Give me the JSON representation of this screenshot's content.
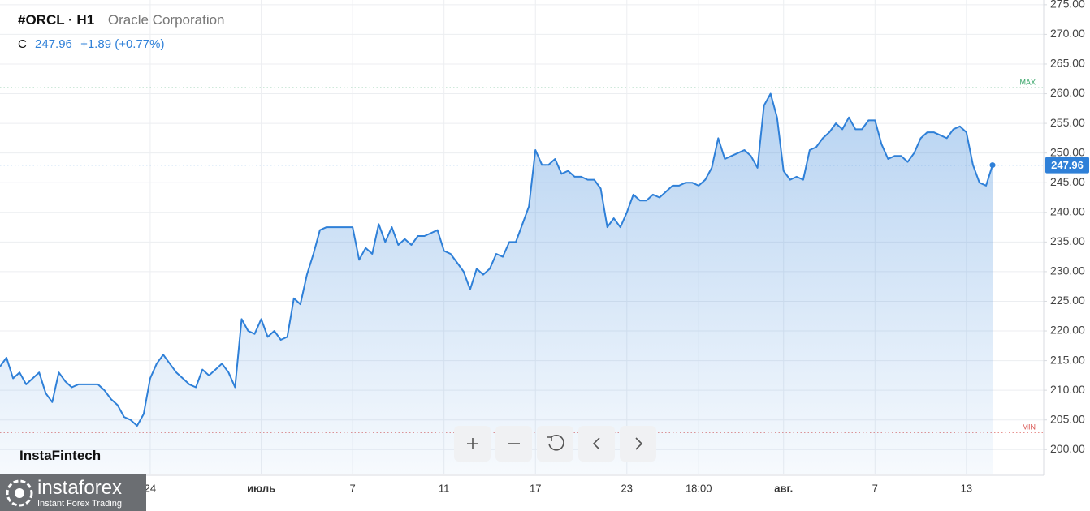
{
  "header": {
    "symbol": "#ORCL · H1",
    "name": "Oracle Corporation",
    "close_label": "C",
    "close": "247.96",
    "change": "+1.89 (+0.77%)"
  },
  "branding": {
    "watermark": "InstaFintech",
    "logo": "instaforex",
    "tagline": "Instant Forex Trading"
  },
  "chart_data": {
    "type": "area",
    "categories": [
      null,
      null,
      null,
      null,
      null,
      null,
      null,
      null,
      null,
      null,
      null,
      null,
      null,
      null,
      null,
      null,
      null,
      null,
      null,
      null,
      null,
      null,
      null,
      "24",
      null,
      null,
      null,
      null,
      null,
      null,
      null,
      null,
      null,
      null,
      null,
      null,
      null,
      null,
      null,
      null,
      "июль",
      null,
      null,
      null,
      null,
      null,
      null,
      null,
      null,
      null,
      null,
      null,
      null,
      null,
      "7",
      null,
      null,
      null,
      null,
      null,
      null,
      null,
      null,
      null,
      null,
      null,
      null,
      null,
      "11",
      null,
      null,
      null,
      null,
      null,
      null,
      null,
      null,
      null,
      null,
      null,
      null,
      null,
      "17",
      null,
      null,
      null,
      null,
      null,
      null,
      null,
      null,
      null,
      null,
      null,
      null,
      null,
      "23",
      null,
      null,
      null,
      null,
      null,
      null,
      null,
      null,
      null,
      null,
      "18:00",
      null,
      null,
      null,
      null,
      null,
      null,
      null,
      null,
      null,
      null,
      null,
      null,
      "авг.",
      null,
      null,
      null,
      null,
      null,
      null,
      null,
      null,
      null,
      null,
      null,
      null,
      null,
      "7",
      null,
      null,
      null,
      null,
      null,
      null,
      null,
      null,
      null,
      null,
      null,
      null,
      null,
      "13",
      null,
      null,
      null,
      null
    ],
    "series": [
      {
        "name": "#ORCL",
        "color": "#2f80d8",
        "values": [
          214,
          215.5,
          212,
          213,
          211,
          212,
          213,
          209.5,
          208,
          213,
          211.5,
          210.5,
          211,
          211,
          211,
          211,
          210,
          208.5,
          207.5,
          205.5,
          205,
          204,
          206,
          212,
          214.5,
          216,
          214.5,
          213,
          212,
          211,
          210.5,
          213.5,
          212.5,
          213.5,
          214.5,
          213,
          210.5,
          222,
          220,
          219.5,
          222,
          219,
          220,
          218.5,
          219,
          225.5,
          224.5,
          229.5,
          233,
          237,
          237.5,
          237.5,
          237.5,
          237.5,
          237.5,
          232,
          234,
          233,
          238,
          235,
          237.5,
          234.5,
          235.5,
          234.5,
          236,
          236,
          236.5,
          237,
          233.5,
          233,
          231.5,
          230,
          227,
          230.5,
          229.5,
          230.5,
          233,
          232.5,
          235,
          235,
          238,
          241,
          250.5,
          248,
          248,
          249,
          246.5,
          247,
          246,
          246,
          245.5,
          245.5,
          244,
          237.5,
          239,
          237.5,
          240,
          243,
          242,
          242,
          243,
          242.5,
          243.5,
          244.5,
          244.5,
          245,
          245,
          244.5,
          245.5,
          247.5,
          252.5,
          249,
          249.5,
          250,
          250.5,
          249.5,
          247.5,
          258,
          260,
          256,
          247,
          245.5,
          246,
          245.5,
          250.5,
          251,
          252.5,
          253.5,
          255,
          254,
          256,
          254,
          254,
          255.5,
          255.5,
          251.5,
          249,
          249.5,
          249.5,
          248.5,
          250,
          252.5,
          253.5,
          253.5,
          253,
          252.5,
          254,
          254.5,
          253.5,
          248,
          245,
          244.5,
          247.96
        ]
      }
    ],
    "last_price": {
      "value": 247.96,
      "label": "247.96"
    },
    "max_line": {
      "value": 261,
      "label": "MAX"
    },
    "min_line": {
      "value": 202.9,
      "label": "MIN"
    },
    "ylim": [
      195.8,
      275.8
    ],
    "yticks": [
      {
        "value": 200,
        "label": "200.00"
      },
      {
        "value": 205,
        "label": "205.00"
      },
      {
        "value": 210,
        "label": "210.00"
      },
      {
        "value": 215,
        "label": "215.00"
      },
      {
        "value": 220,
        "label": "220.00"
      },
      {
        "value": 225,
        "label": "225.00"
      },
      {
        "value": 230,
        "label": "230.00"
      },
      {
        "value": 235,
        "label": "235.00"
      },
      {
        "value": 240,
        "label": "240.00"
      },
      {
        "value": 245,
        "label": "245.00"
      },
      {
        "value": 250,
        "label": "250.00"
      },
      {
        "value": 255,
        "label": "255.00"
      },
      {
        "value": 260,
        "label": "260.00"
      },
      {
        "value": 265,
        "label": "265.00"
      },
      {
        "value": 270,
        "label": "270.00"
      },
      {
        "value": 275,
        "label": "275.00"
      }
    ],
    "grid": true
  }
}
